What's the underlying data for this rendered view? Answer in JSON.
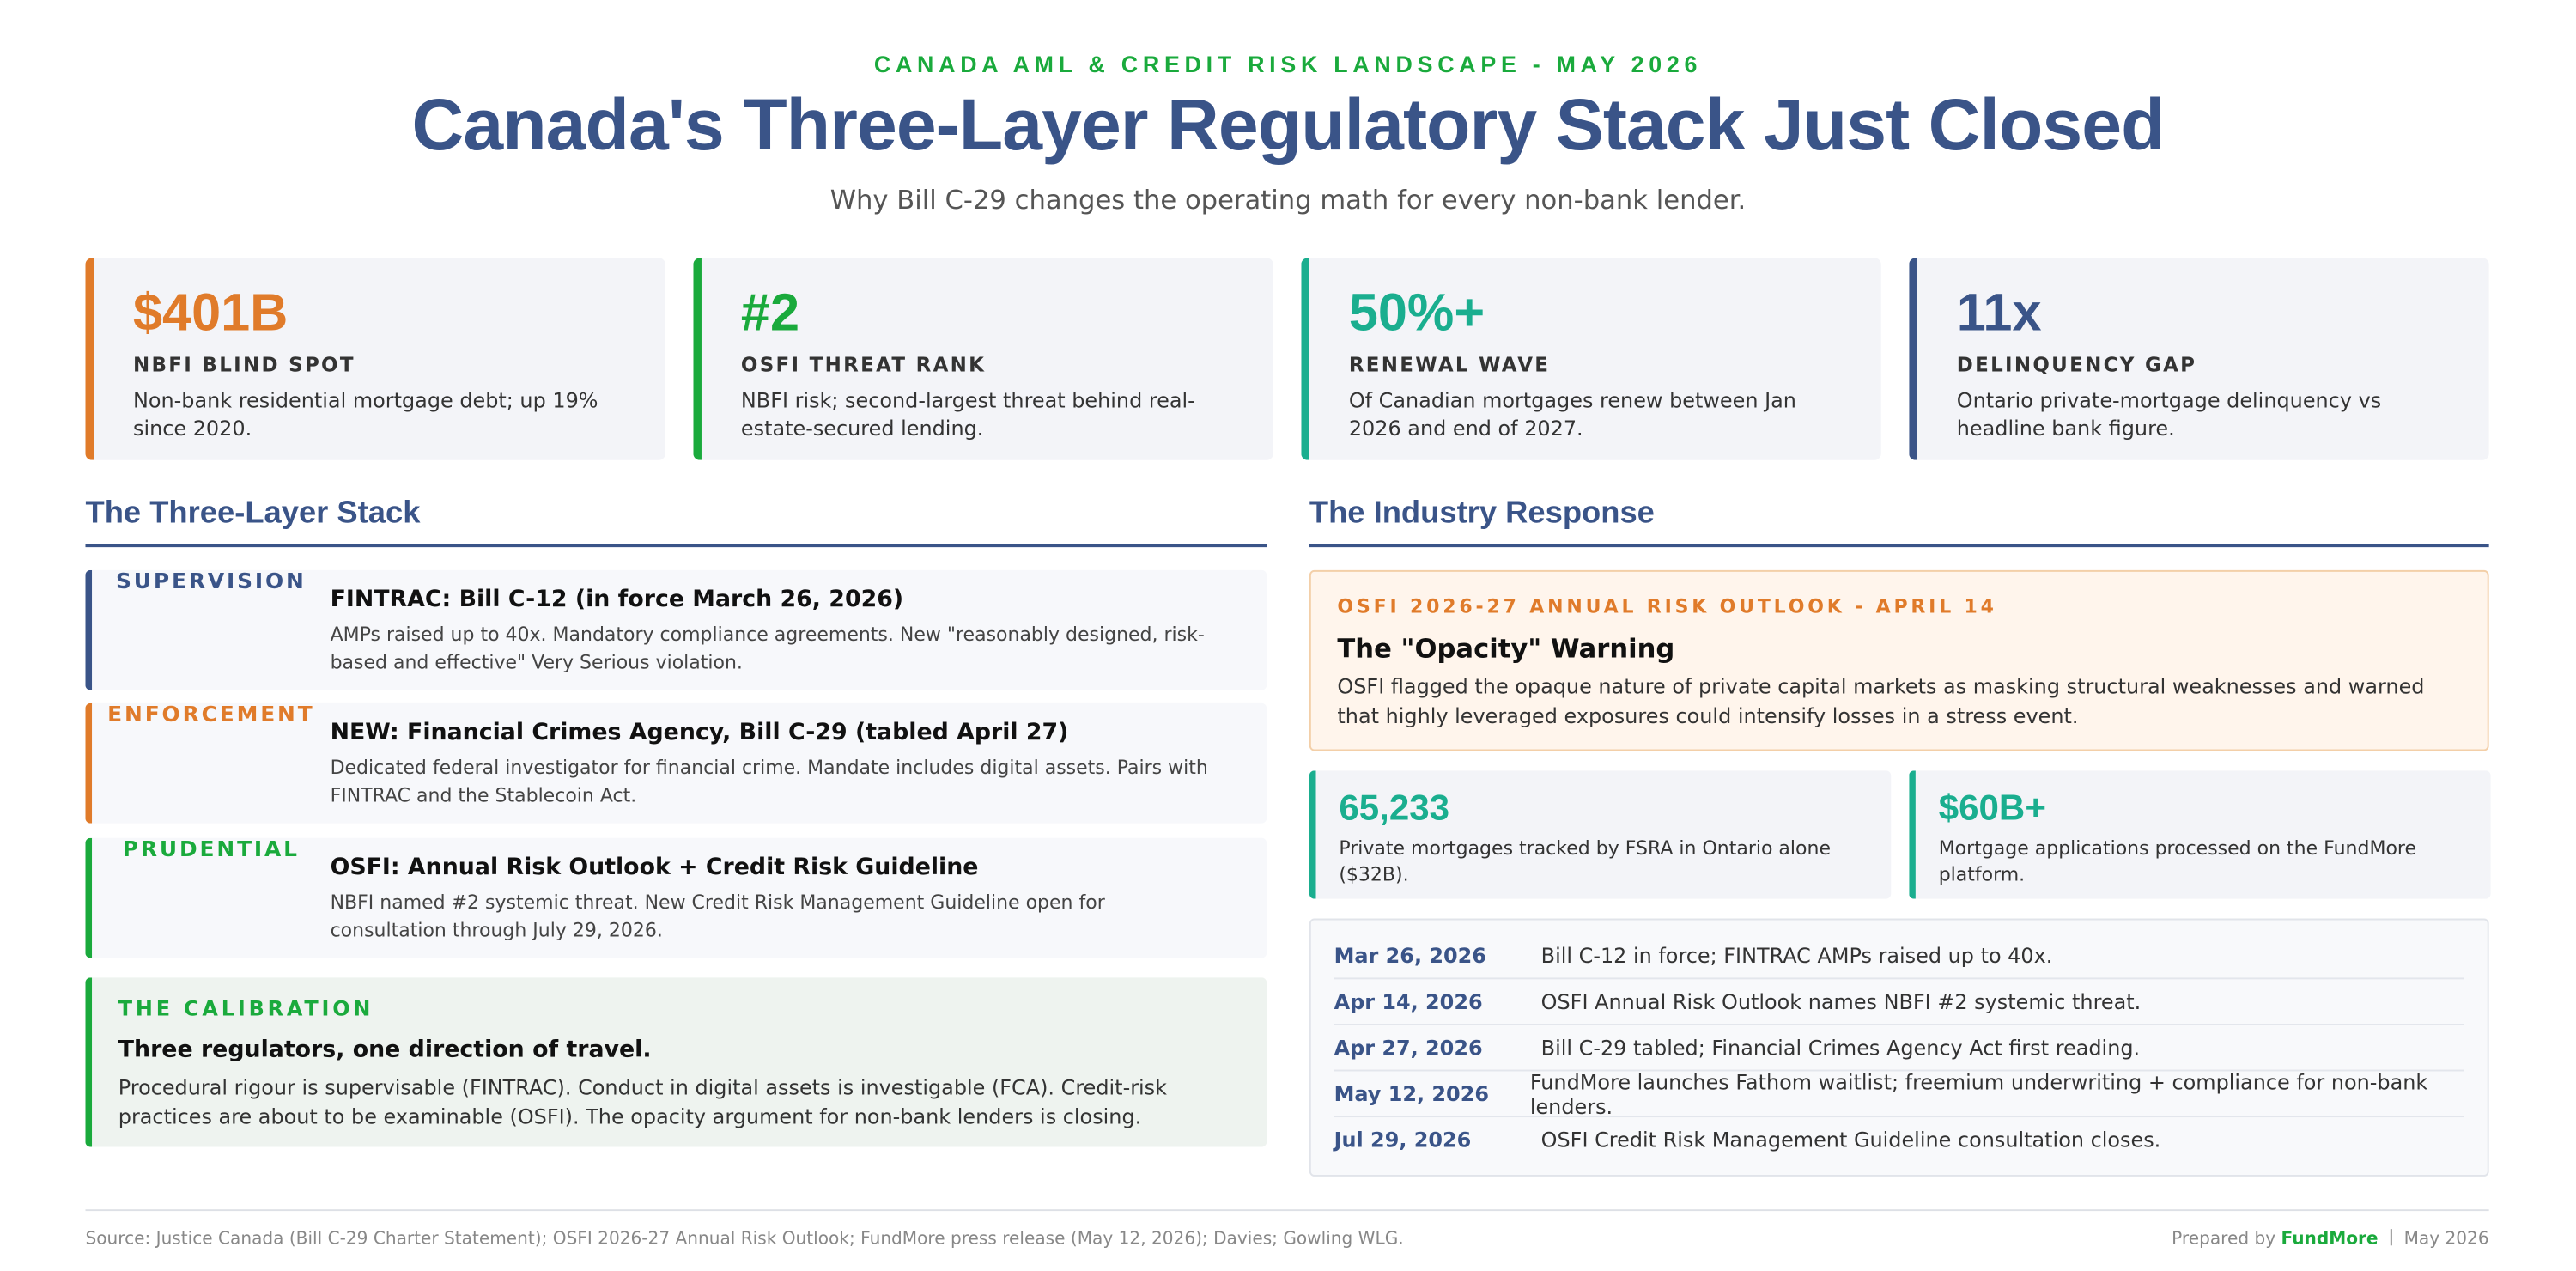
{
  "header": {
    "kicker": "CANADA AML & CREDIT RISK LANDSCAPE - MAY 2026",
    "title": "Canada's Three-Layer Regulatory Stack Just Closed",
    "subtitle": "Why Bill C-29 changes the operating math for every non-bank lender."
  },
  "stats": [
    {
      "value": "$401B",
      "label": "NBFI BLIND SPOT",
      "desc": "Non-bank residential mortgage debt; up 19% since 2020."
    },
    {
      "value": "#2",
      "label": "OSFI THREAT RANK",
      "desc": "NBFI risk; second-largest threat behind real-estate-secured lending."
    },
    {
      "value": "50%+",
      "label": "RENEWAL WAVE",
      "desc": "Of Canadian mortgages renew between Jan 2026 and end of 2027."
    },
    {
      "value": "11x",
      "label": "DELINQUENCY GAP",
      "desc": "Ontario private-mortgage delinquency vs headline bank figure."
    }
  ],
  "left": {
    "heading": "The Three-Layer Stack",
    "layers": [
      {
        "name": "SUPERVISION",
        "title": "FINTRAC: Bill C-12 (in force March 26, 2026)",
        "desc": "AMPs raised up to 40x. Mandatory compliance agreements. New \"reasonably designed, risk-based and effective\" Very Serious violation."
      },
      {
        "name": "ENFORCEMENT",
        "title": "NEW: Financial Crimes Agency, Bill C-29 (tabled April 27)",
        "desc": "Dedicated federal investigator for financial crime. Mandate includes digital assets. Pairs with FINTRAC and the Stablecoin Act."
      },
      {
        "name": "PRUDENTIAL",
        "title": "OSFI: Annual Risk Outlook + Credit Risk Guideline",
        "desc": "NBFI named #2 systemic threat. New Credit Risk Management Guideline open for consultation through July 29, 2026."
      }
    ],
    "calibration": {
      "kicker": "THE CALIBRATION",
      "title": "Three regulators, one direction of travel.",
      "text": "Procedural rigour is supervisable (FINTRAC). Conduct in digital assets is investigable (FCA). Credit-risk practices are about to be examinable (OSFI). The opacity argument for non-bank lenders is closing."
    }
  },
  "right": {
    "heading": "The Industry Response",
    "outlook": {
      "kicker": "OSFI 2026-27 ANNUAL RISK OUTLOOK - APRIL 14",
      "title": "The \"Opacity\" Warning",
      "text": "OSFI flagged the opaque nature of private capital markets as masking structural weaknesses and warned that highly leveraged exposures could intensify losses in a stress event."
    },
    "metrics": [
      {
        "value": "65,233",
        "desc": "Private mortgages tracked by FSRA in Ontario alone ($32B)."
      },
      {
        "value": "$60B+",
        "desc": "Mortgage applications processed on the FundMore platform."
      }
    ],
    "timeline": [
      {
        "date": "Mar 26, 2026",
        "text": "Bill C-12 in force; FINTRAC AMPs raised up to 40x."
      },
      {
        "date": "Apr 14, 2026",
        "text": "OSFI Annual Risk Outlook names NBFI #2 systemic threat."
      },
      {
        "date": "Apr 27, 2026",
        "text": "Bill C-29 tabled; Financial Crimes Agency Act first reading."
      },
      {
        "date": "May 12, 2026",
        "text": "FundMore launches Fathom waitlist; freemium underwriting + compliance for non-bank lenders."
      },
      {
        "date": "Jul 29, 2026",
        "text": "OSFI Credit Risk Management Guideline consultation closes."
      }
    ]
  },
  "footer": {
    "source": "Source: Justice Canada (Bill C-29 Charter Statement); OSFI 2026-27 Annual Risk Outlook; FundMore press release (May 12, 2026); Davies; Gowling WLG.",
    "prepared": "Prepared by",
    "brand": "FundMore",
    "date": "May 2026"
  }
}
